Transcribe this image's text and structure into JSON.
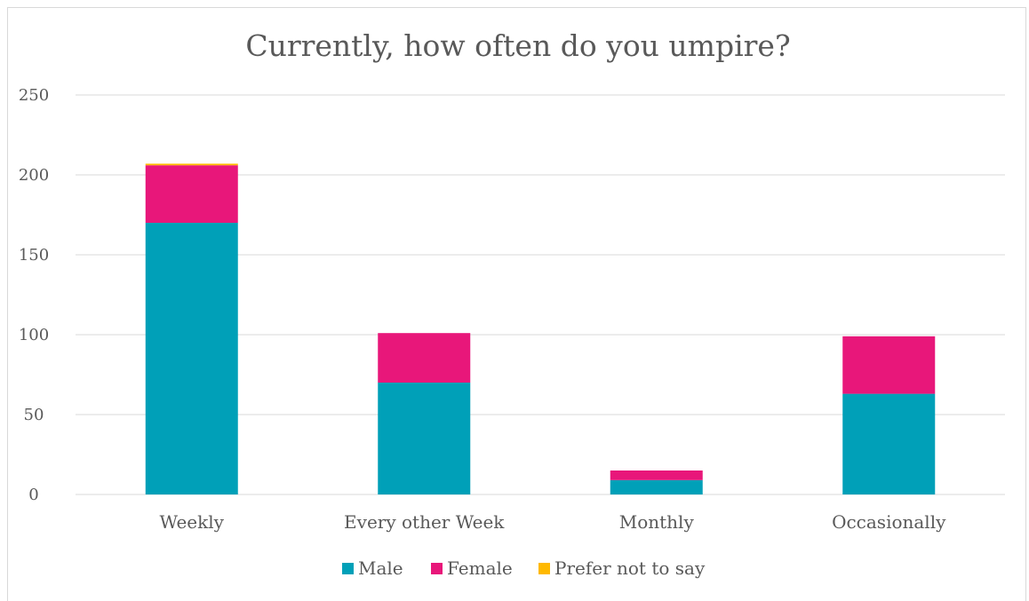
{
  "chart_data": {
    "type": "bar",
    "stacked": true,
    "title": "Currently, how often do you umpire?",
    "xlabel": "",
    "ylabel": "",
    "categories": [
      "Weekly",
      "Every other Week",
      "Monthly",
      "Occasionally"
    ],
    "ylim": [
      0,
      250
    ],
    "yticks": [
      0,
      50,
      100,
      150,
      200,
      250
    ],
    "grid": true,
    "legend_position": "bottom",
    "series": [
      {
        "name": "Male",
        "color": "#00a0b8",
        "values": [
          170,
          70,
          9,
          63
        ]
      },
      {
        "name": "Female",
        "color": "#e8177a",
        "values": [
          36,
          31,
          6,
          36
        ]
      },
      {
        "name": "Prefer not to say",
        "color": "#ffb900",
        "values": [
          1,
          0,
          0,
          0
        ]
      }
    ]
  }
}
